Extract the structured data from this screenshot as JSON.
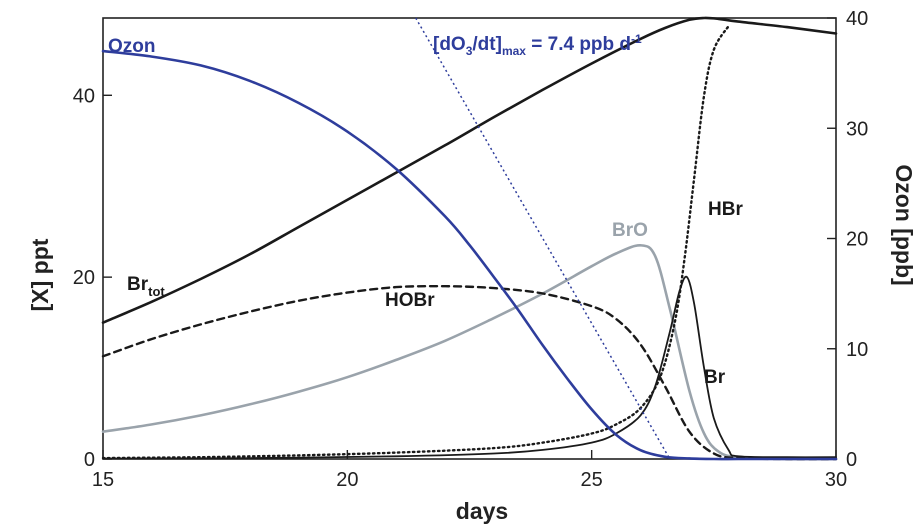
{
  "chart_data": {
    "type": "line",
    "xlabel": "days",
    "ylabel_left": "[X] ppt",
    "ylabel_right": "Ozon [ppb]",
    "xlim": [
      15,
      30
    ],
    "ylim_left": [
      0,
      48.5
    ],
    "ylim_right": [
      0,
      40
    ],
    "x_ticks": [
      15,
      20,
      25,
      30
    ],
    "y_ticks_left": [
      0,
      20,
      40
    ],
    "y_ticks_right": [
      0,
      10,
      20,
      30,
      40
    ],
    "grid": false,
    "legend": "none (curves labeled directly)",
    "annotation": {
      "main": "[dO",
      "sub1": "3",
      "mid": "/dt]",
      "sub2": "max",
      "tail": " = 7.4 ppb d",
      "sup": "-1"
    },
    "series": [
      {
        "name": "Ozon",
        "axis": "right",
        "color": "#2e3d9c",
        "style": "solid",
        "label": "Ozon",
        "x": [
          15,
          16,
          17,
          18,
          19,
          20,
          21,
          22,
          22.5,
          23,
          23.5,
          24,
          24.5,
          25,
          25.5,
          26,
          26.5,
          27,
          27.5,
          28,
          29,
          30
        ],
        "y": [
          37.0,
          36.5,
          35.7,
          34.3,
          32.3,
          29.7,
          26.3,
          22.0,
          19.4,
          16.5,
          13.5,
          10.3,
          7.3,
          4.5,
          2.2,
          0.8,
          0.2,
          0.05,
          0,
          0,
          0,
          0
        ]
      },
      {
        "name": "Br_tot",
        "axis": "left",
        "color": "#1a1a1a",
        "style": "solid",
        "label_main": "Br",
        "label_sub": "tot",
        "x": [
          15,
          16,
          17,
          18,
          19,
          20,
          21,
          22,
          23,
          24,
          25,
          26,
          26.5,
          27,
          27.3,
          27.6,
          28,
          29,
          30
        ],
        "y": [
          15.0,
          17.3,
          19.8,
          22.5,
          25.5,
          28.5,
          31.5,
          34.5,
          37.6,
          40.6,
          43.5,
          46.2,
          47.4,
          48.3,
          48.5,
          48.4,
          48.1,
          47.5,
          46.8
        ]
      },
      {
        "name": "HOBr",
        "axis": "left",
        "color": "#1a1a1a",
        "style": "dashed",
        "label": "HOBr",
        "x": [
          15,
          16,
          17,
          18,
          19,
          20,
          21,
          22,
          23,
          24,
          25,
          25.5,
          26,
          26.5,
          27,
          27.5,
          28,
          29,
          30
        ],
        "y": [
          11.3,
          13.2,
          14.8,
          16.2,
          17.4,
          18.3,
          18.9,
          19.0,
          18.8,
          18.2,
          16.8,
          15.4,
          12.6,
          8.0,
          3.0,
          0.6,
          0.1,
          0,
          0
        ]
      },
      {
        "name": "BrO",
        "axis": "left",
        "color": "#9aa3ab",
        "style": "solid",
        "label": "BrO",
        "x": [
          15,
          16,
          17,
          18,
          19,
          20,
          21,
          22,
          23,
          24,
          25,
          25.5,
          26,
          26.3,
          26.6,
          27,
          27.3,
          27.6,
          28,
          29,
          30
        ],
        "y": [
          3.0,
          3.8,
          4.8,
          6.0,
          7.4,
          9.0,
          10.9,
          13.0,
          15.5,
          18.2,
          21.2,
          22.6,
          23.5,
          22.3,
          16.5,
          7.5,
          2.8,
          0.8,
          0.2,
          0,
          0
        ]
      },
      {
        "name": "HBr",
        "axis": "left",
        "color": "#1a1a1a",
        "style": "dotted",
        "label": "HBr",
        "x": [
          15,
          17,
          19,
          21,
          23,
          24,
          25,
          25.5,
          26,
          26.4,
          26.7,
          26.9,
          27.1,
          27.3,
          27.5,
          27.8
        ],
        "y": [
          0.1,
          0.2,
          0.4,
          0.7,
          1.2,
          1.8,
          2.8,
          3.8,
          5.6,
          9.0,
          15.0,
          22.0,
          31.0,
          40.0,
          45.0,
          47.6
        ]
      },
      {
        "name": "Br",
        "axis": "left",
        "color": "#1a1a1a",
        "style": "solid_thin",
        "label": "Br",
        "x": [
          15,
          18,
          21,
          23,
          24,
          25,
          25.5,
          26,
          26.3,
          26.6,
          26.8,
          26.95,
          27.1,
          27.3,
          27.5,
          27.8,
          28,
          29,
          30
        ],
        "y": [
          0.05,
          0.1,
          0.3,
          0.6,
          1.0,
          1.8,
          2.8,
          4.8,
          8.0,
          14.0,
          18.5,
          20.0,
          17.0,
          10.0,
          4.5,
          1.0,
          0.3,
          0.2,
          0.2
        ]
      }
    ],
    "slope_line": {
      "name": "dO3/dt max tangent",
      "axis": "right",
      "color": "#2e3d9c",
      "style": "dotted",
      "x": [
        21.4,
        26.6
      ],
      "y": [
        40,
        0
      ]
    }
  }
}
